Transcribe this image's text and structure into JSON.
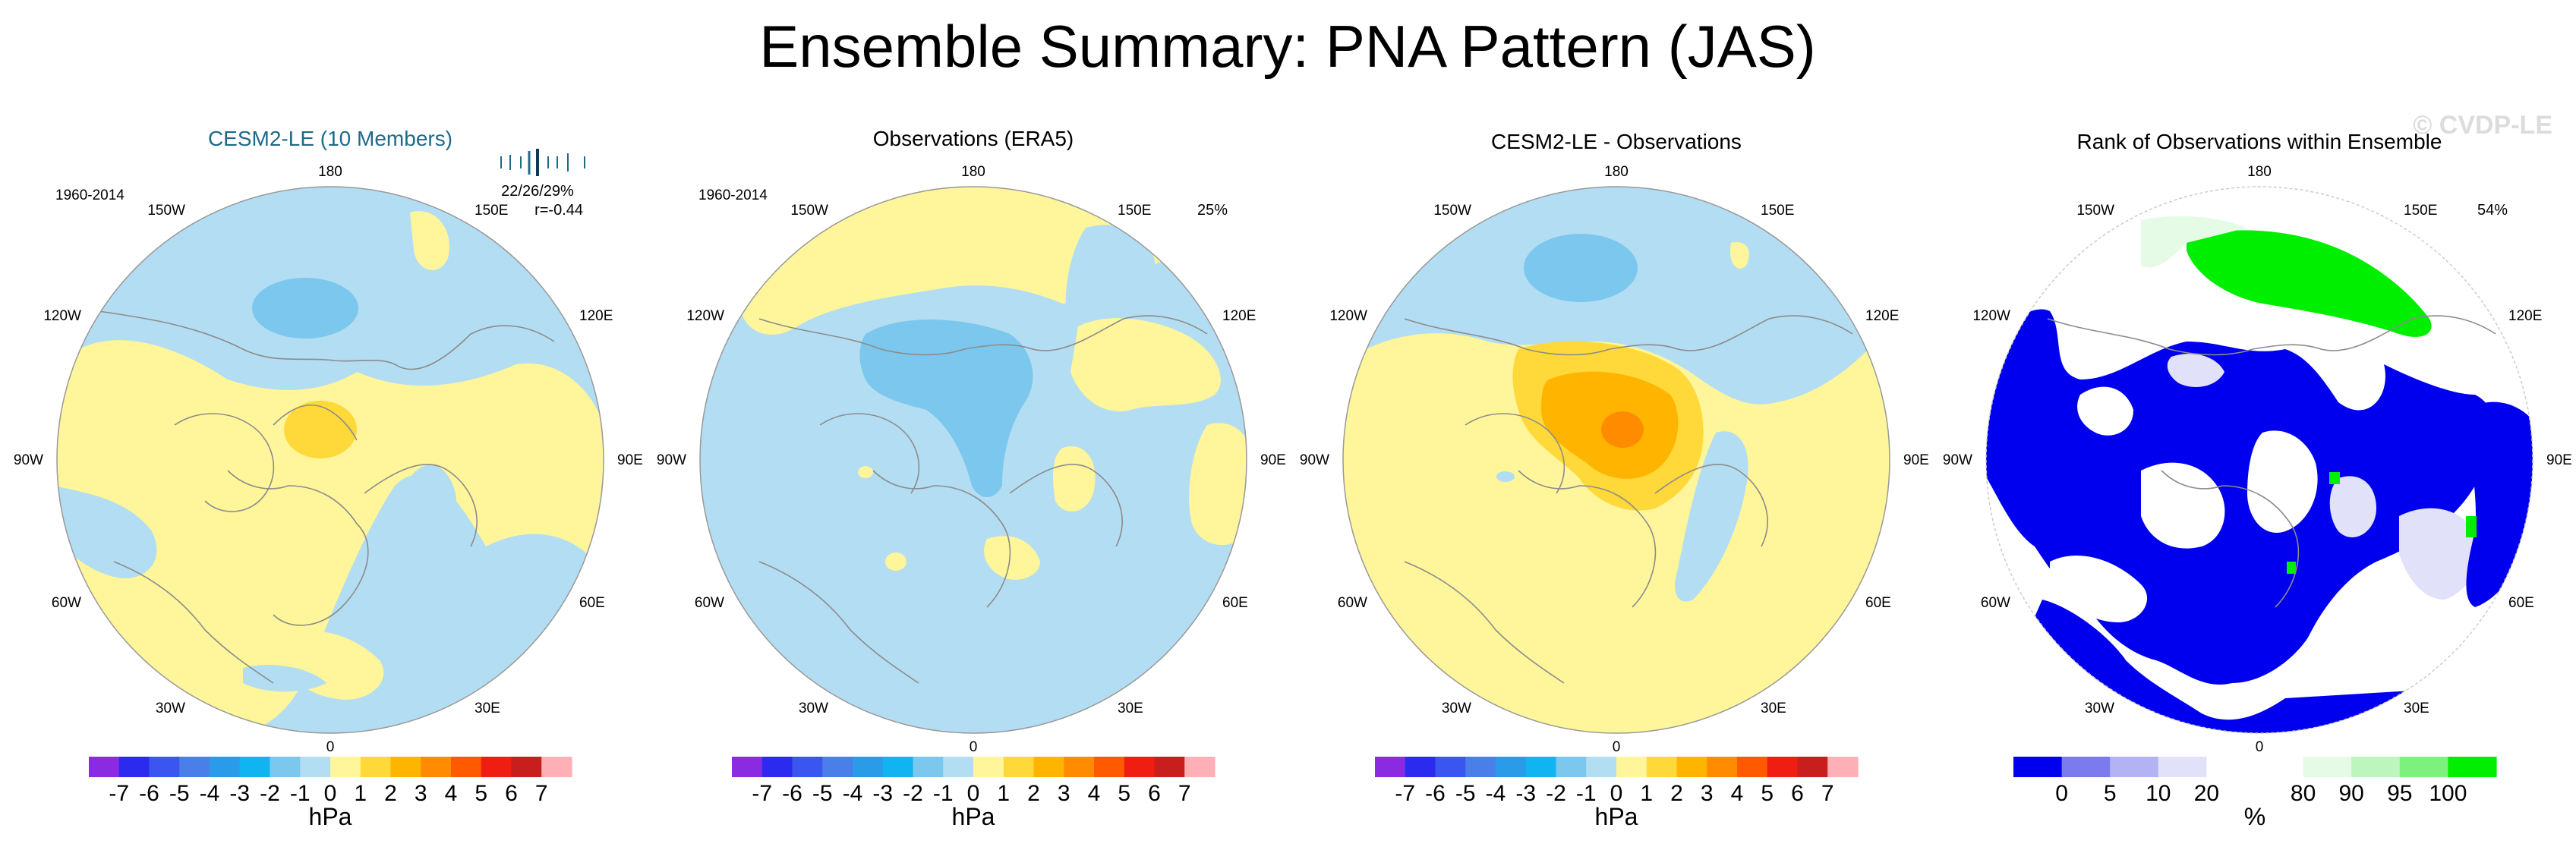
{
  "title": "Ensemble Summary: PNA Pattern (JAS)",
  "watermark": "© CVDP-LE",
  "colors": {
    "cesm_title": "#1d6a8a",
    "land_outline": "#8c8c8c",
    "map_border": "#999999",
    "hpa_scale": [
      "#8a2be2",
      "#2b2bf0",
      "#3b55f0",
      "#4a7ee8",
      "#2a9be8",
      "#0fb4f0",
      "#7cc7ee",
      "#b3ddf2",
      "#fff59a",
      "#ffd83a",
      "#ffb400",
      "#ff8c00",
      "#ff5a00",
      "#ef1d12",
      "#c81e1e",
      "#ffb0b6"
    ],
    "pct_scale": [
      "#0000ee",
      "#7b7bee",
      "#b3b3f4",
      "#e1e1fa",
      "#ffffff",
      "#ffffff",
      "#e6fbe6",
      "#bdf5bd",
      "#7ef07e",
      "#00ee00"
    ]
  },
  "lon_labels": {
    "top": "180",
    "bottom": "0",
    "upper_left": "150W",
    "upper_right": "150E",
    "mid_left_upper": "120W",
    "mid_right_upper": "120E",
    "left": "90W",
    "right": "90E",
    "mid_left_lower": "60W",
    "mid_right_lower": "60E",
    "lower_left": "30W",
    "lower_right": "30E"
  },
  "panels": [
    {
      "title": "CESM2-LE (10 Members)",
      "period": "1960-2014",
      "stats": "22/26/29%",
      "corr": "r=-0.44",
      "pct": "",
      "colorbar": {
        "ticks": [
          "-7",
          "-6",
          "-5",
          "-4",
          "-3",
          "-2",
          "-1",
          "0",
          "1",
          "2",
          "3",
          "4",
          "5",
          "6",
          "7"
        ],
        "unit": "hPa"
      }
    },
    {
      "title": "Observations (ERA5)",
      "period": "1960-2014",
      "stats": "",
      "corr": "",
      "pct": "25%",
      "colorbar": {
        "ticks": [
          "-7",
          "-6",
          "-5",
          "-4",
          "-3",
          "-2",
          "-1",
          "0",
          "1",
          "2",
          "3",
          "4",
          "5",
          "6",
          "7"
        ],
        "unit": "hPa"
      }
    },
    {
      "title": "CESM2-LE - Observations",
      "period": "",
      "stats": "",
      "corr": "",
      "pct": "",
      "colorbar": {
        "ticks": [
          "-7",
          "-6",
          "-5",
          "-4",
          "-3",
          "-2",
          "-1",
          "0",
          "1",
          "2",
          "3",
          "4",
          "5",
          "6",
          "7"
        ],
        "unit": "hPa"
      }
    },
    {
      "title": "Rank of Observations within Ensemble",
      "period": "",
      "stats": "",
      "corr": "",
      "pct": "54%",
      "colorbar": {
        "ticks": [
          "0",
          "5",
          "10",
          "20",
          "80",
          "90",
          "95",
          "100"
        ],
        "unit": "%"
      }
    }
  ],
  "chart_data": [
    {
      "type": "heatmap",
      "title": "CESM2-LE (10 Members)",
      "projection": "north-polar-stereographic",
      "units": "hPa",
      "levels": [
        -7,
        -6,
        -5,
        -4,
        -3,
        -2,
        -1,
        0,
        1,
        2,
        3,
        4,
        5,
        6,
        7
      ],
      "range": [
        -1,
        2
      ]
    },
    {
      "type": "heatmap",
      "title": "Observations (ERA5)",
      "projection": "north-polar-stereographic",
      "units": "hPa",
      "levels": [
        -7,
        -6,
        -5,
        -4,
        -3,
        -2,
        -1,
        0,
        1,
        2,
        3,
        4,
        5,
        6,
        7
      ],
      "range": [
        -2,
        1
      ]
    },
    {
      "type": "heatmap",
      "title": "CESM2-LE - Observations",
      "projection": "north-polar-stereographic",
      "units": "hPa",
      "levels": [
        -7,
        -6,
        -5,
        -4,
        -3,
        -2,
        -1,
        0,
        1,
        2,
        3,
        4,
        5,
        6,
        7
      ],
      "range": [
        -2,
        4
      ]
    },
    {
      "type": "heatmap",
      "title": "Rank of Observations within Ensemble",
      "projection": "north-polar-stereographic",
      "units": "%",
      "levels": [
        0,
        5,
        10,
        20,
        80,
        90,
        95,
        100
      ],
      "range": [
        0,
        100
      ]
    }
  ]
}
